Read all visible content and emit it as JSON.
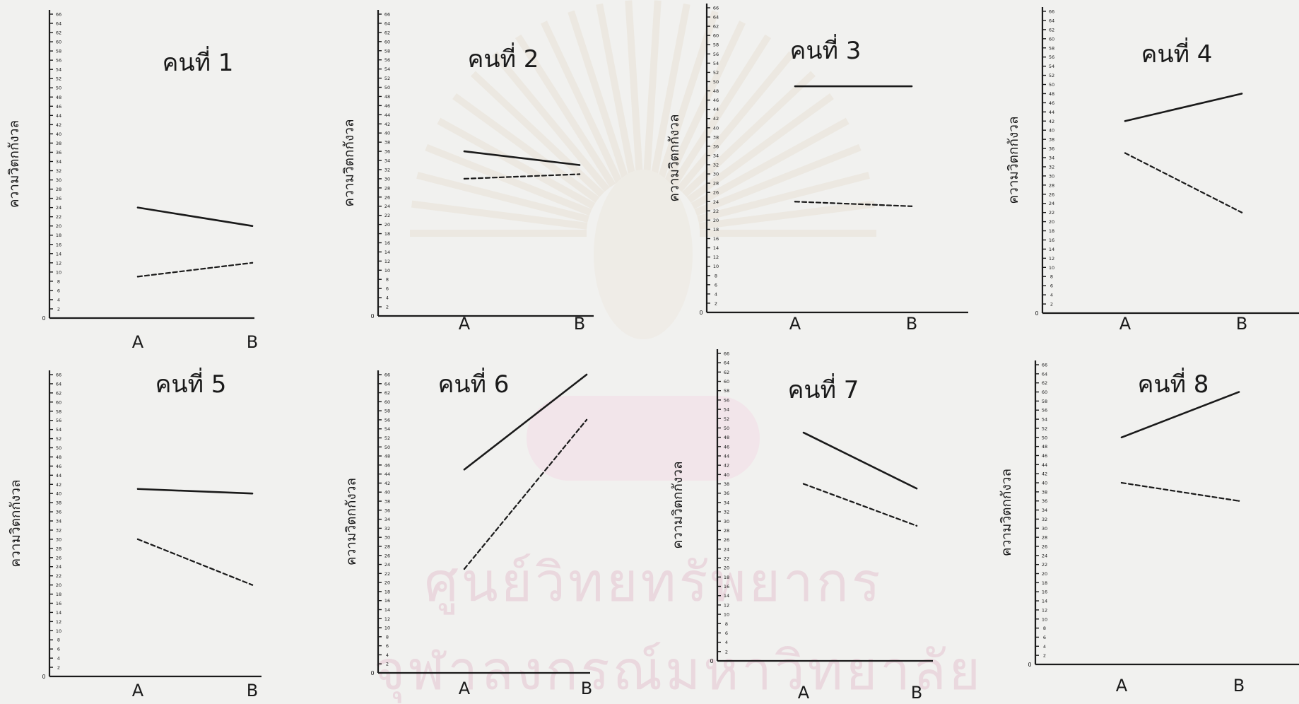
{
  "page": {
    "background": "#f1f1ef",
    "ink_color": "#1a1a1a",
    "watermark_color": "#ead8de",
    "watermark": {
      "lines": [
        "ศูนย์วิทยทรัพยากร",
        "จุฬาลงกรณ์มหาวิทยาลัย"
      ],
      "emblem": "university-seal-emblem"
    }
  },
  "chart_data": [
    {
      "type": "line",
      "title": "คนที่ 1",
      "ylabel": "ความวิตกกังวล",
      "categories": [
        "A",
        "B"
      ],
      "series": [
        {
          "style": "solid",
          "values": [
            24,
            20
          ]
        },
        {
          "style": "dashed",
          "values": [
            9,
            12
          ]
        }
      ],
      "ylim": [
        0,
        66
      ],
      "grid": false
    },
    {
      "type": "line",
      "title": "คนที่ 2",
      "ylabel": "ความวิตกกังวล",
      "categories": [
        "A",
        "B"
      ],
      "series": [
        {
          "style": "solid",
          "values": [
            36,
            33
          ]
        },
        {
          "style": "dashed",
          "values": [
            30,
            31
          ]
        }
      ],
      "ylim": [
        0,
        66
      ],
      "grid": false
    },
    {
      "type": "line",
      "title": "คนที่ 3",
      "ylabel": "ความวิตกกังวล",
      "categories": [
        "A",
        "B"
      ],
      "series": [
        {
          "style": "solid",
          "values": [
            49,
            49
          ]
        },
        {
          "style": "dashed",
          "values": [
            24,
            23
          ]
        }
      ],
      "ylim": [
        0,
        66
      ],
      "grid": false
    },
    {
      "type": "line",
      "title": "คนที่ 4",
      "ylabel": "ความวิตกกังวล",
      "categories": [
        "A",
        "B"
      ],
      "series": [
        {
          "style": "solid",
          "values": [
            42,
            48
          ]
        },
        {
          "style": "dashed",
          "values": [
            35,
            22
          ]
        }
      ],
      "ylim": [
        0,
        66
      ],
      "grid": false
    },
    {
      "type": "line",
      "title": "คนที่ 5",
      "ylabel": "ความวิตกกังวล",
      "categories": [
        "A",
        "B"
      ],
      "series": [
        {
          "style": "solid",
          "values": [
            41,
            40
          ]
        },
        {
          "style": "dashed",
          "values": [
            30,
            20
          ]
        }
      ],
      "ylim": [
        0,
        66
      ],
      "grid": false
    },
    {
      "type": "line",
      "title": "คนที่ 6",
      "ylabel": "ความวิตกกังวล",
      "categories": [
        "A",
        "B"
      ],
      "series": [
        {
          "style": "solid",
          "values": [
            45,
            66
          ]
        },
        {
          "style": "dashed",
          "values": [
            23,
            56
          ]
        }
      ],
      "ylim": [
        0,
        66
      ],
      "grid": false
    },
    {
      "type": "line",
      "title": "คนที่ 7",
      "ylabel": "ความวิตกกังวล",
      "categories": [
        "A",
        "B"
      ],
      "series": [
        {
          "style": "solid",
          "values": [
            49,
            37
          ]
        },
        {
          "style": "dashed",
          "values": [
            38,
            29
          ]
        }
      ],
      "ylim": [
        0,
        66
      ],
      "grid": false
    },
    {
      "type": "line",
      "title": "คนที่ 8",
      "ylabel": "ความวิตกกังวล",
      "categories": [
        "A",
        "B"
      ],
      "series": [
        {
          "style": "solid",
          "values": [
            50,
            60
          ]
        },
        {
          "style": "dashed",
          "values": [
            40,
            36
          ]
        }
      ],
      "ylim": [
        0,
        66
      ],
      "grid": false
    }
  ]
}
